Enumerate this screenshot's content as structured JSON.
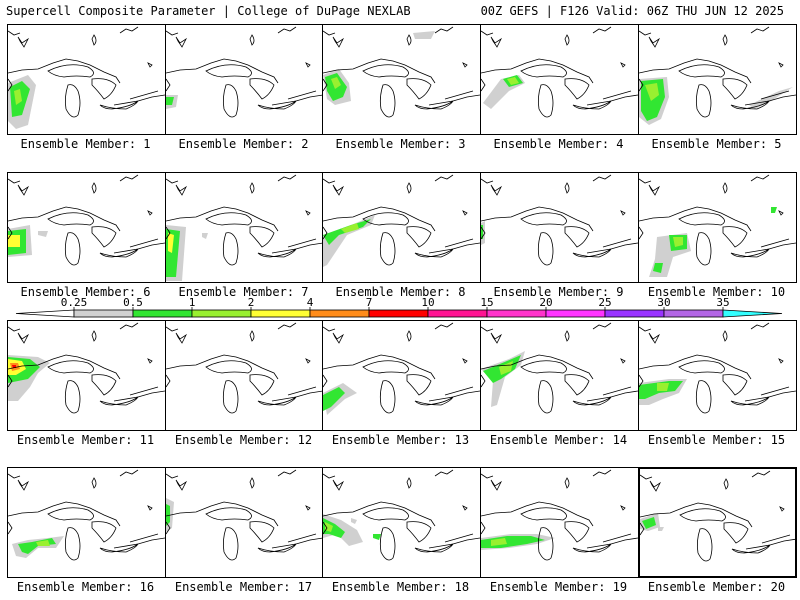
{
  "header": {
    "title": "Supercell Composite Parameter | College of DuPage NEXLAB",
    "run_info": "00Z GEFS | F126 Valid: 06Z THU JUN 12 2025"
  },
  "colorbar": {
    "ticks": [
      "0.25",
      "0.5",
      "1",
      "2",
      "4",
      "7",
      "10",
      "15",
      "20",
      "25",
      "30",
      "35"
    ],
    "colors": [
      "#d0d0d0",
      "#32e632",
      "#99f030",
      "#ffff33",
      "#ff8c1a",
      "#ff0000",
      "#ff1493",
      "#ff33cc",
      "#ff33ff",
      "#9933ff",
      "#b366e6",
      "#33ffff"
    ]
  },
  "panels": [
    {
      "label": "Ensemble Member: 1"
    },
    {
      "label": "Ensemble Member: 2"
    },
    {
      "label": "Ensemble Member: 3"
    },
    {
      "label": "Ensemble Member: 4"
    },
    {
      "label": "Ensemble Member: 5"
    },
    {
      "label": "Ensemble Member: 6"
    },
    {
      "label": "Ensemble Member: 7"
    },
    {
      "label": "Ensemble Member: 8"
    },
    {
      "label": "Ensemble Member: 9"
    },
    {
      "label": "Ensemble Member: 10"
    },
    {
      "label": "Ensemble Member: 11"
    },
    {
      "label": "Ensemble Member: 12"
    },
    {
      "label": "Ensemble Member: 13"
    },
    {
      "label": "Ensemble Member: 14"
    },
    {
      "label": "Ensemble Member: 15"
    },
    {
      "label": "Ensemble Member: 16"
    },
    {
      "label": "Ensemble Member: 17"
    },
    {
      "label": "Ensemble Member: 18"
    },
    {
      "label": "Ensemble Member: 19"
    },
    {
      "label": "Ensemble Member: 20",
      "selected": true
    }
  ]
}
